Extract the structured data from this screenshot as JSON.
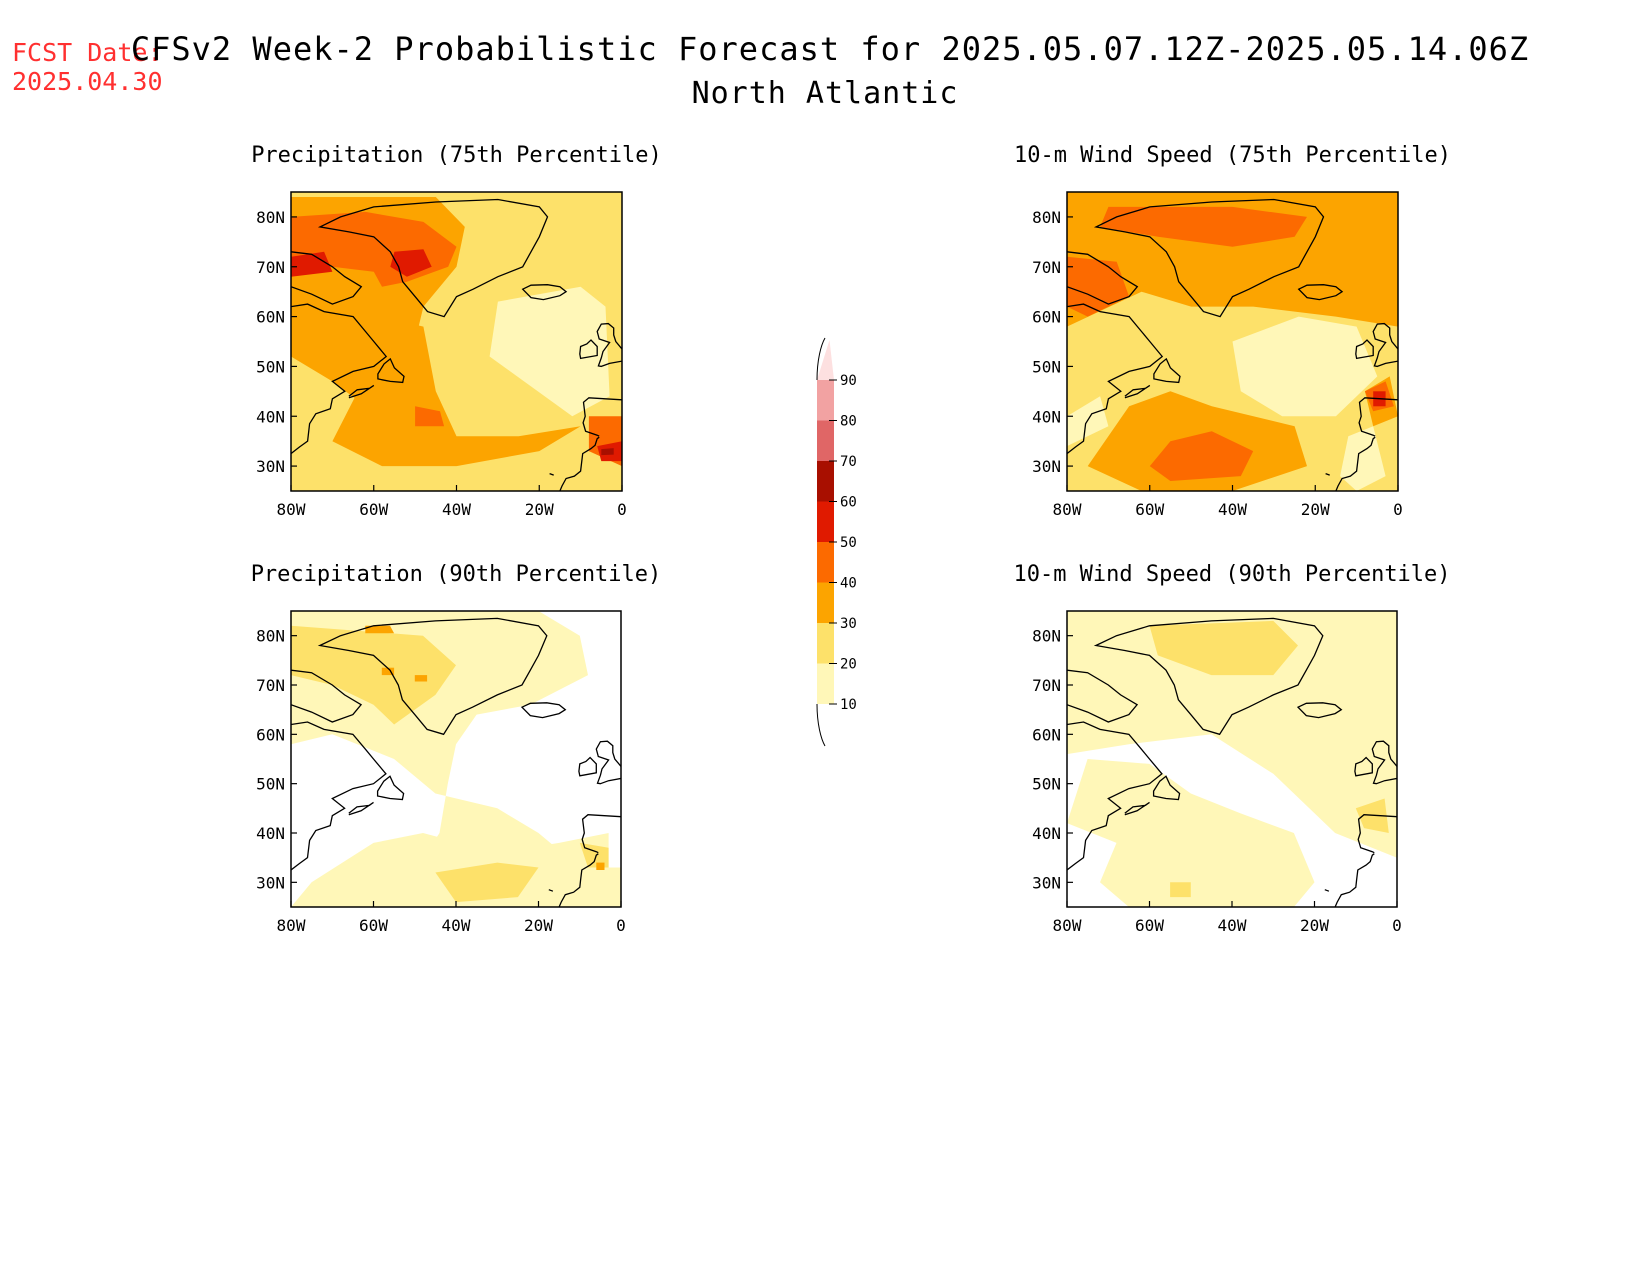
{
  "header": {
    "fcst_label": "FCST Date:",
    "fcst_date": "2025.04.30",
    "title": "CFSv2 Week-2 Probabilistic Forecast for 2025.05.07.12Z-2025.05.14.06Z",
    "subtitle": "North Atlantic"
  },
  "axes": {
    "lat_ticks": [
      "80N",
      "70N",
      "60N",
      "50N",
      "40N",
      "30N"
    ],
    "lon_ticks": [
      "80W",
      "60W",
      "40W",
      "20W",
      "0"
    ]
  },
  "panels": [
    {
      "title": "Precipitation (75th Percentile)",
      "key": "p75"
    },
    {
      "title": "10-m Wind Speed (75th Percentile)",
      "key": "w75"
    },
    {
      "title": "Precipitation (90th Percentile)",
      "key": "p90"
    },
    {
      "title": "10-m Wind Speed (90th Percentile)",
      "key": "w90"
    }
  ],
  "colorbar": {
    "labels": [
      "90",
      "80",
      "70",
      "60",
      "50",
      "40",
      "30",
      "20",
      "10"
    ],
    "colors": {
      "10": "#fff7b8",
      "20": "#fde16a",
      "30": "#fca400",
      "40": "#fc6a00",
      "50": "#e01a00",
      "60": "#a80f00",
      "70": "#e06666",
      "80": "#f2a2a2",
      "90": "#fde0e0"
    }
  }
}
